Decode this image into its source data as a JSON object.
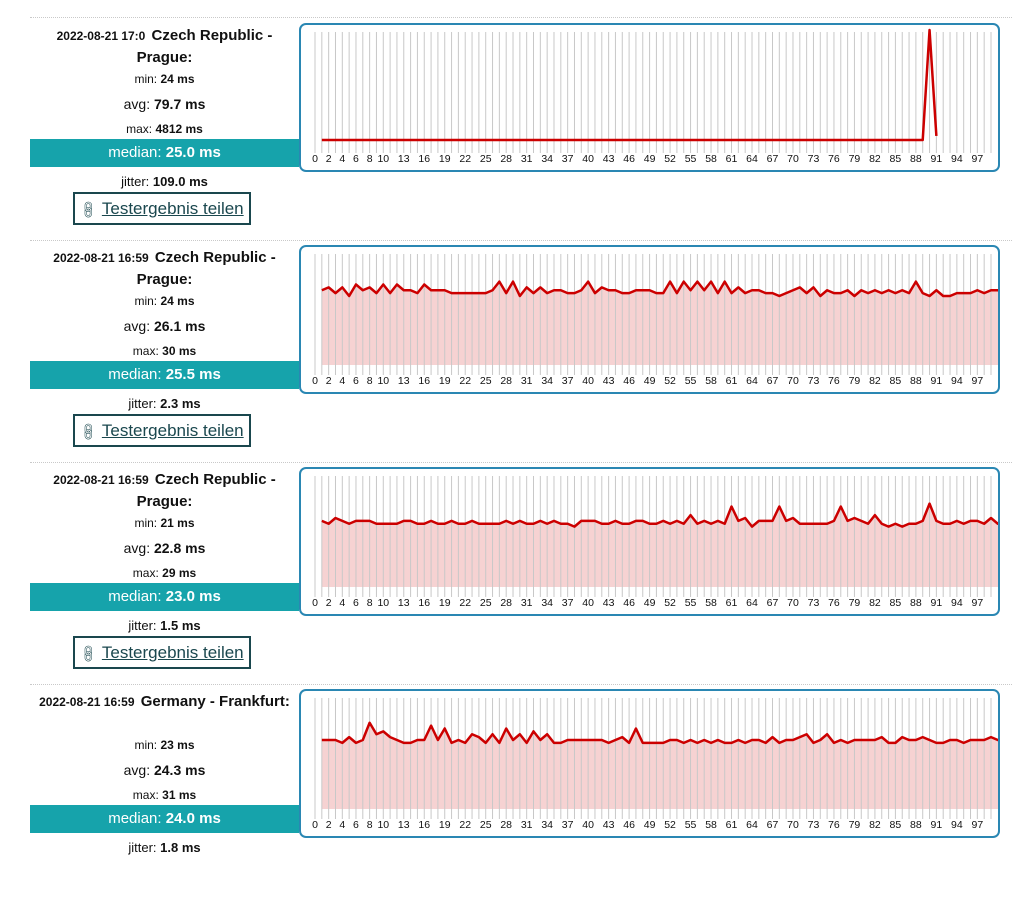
{
  "labels": {
    "min": "min:",
    "avg": "avg:",
    "max": "max:",
    "median": "median:",
    "jitter": "jitter:",
    "share": "Testergebnis teilen"
  },
  "results": [
    {
      "timestamp": "2022-08-21 17:0",
      "location": "Czech Republic - Prague:",
      "min": "24 ms",
      "avg": "79.7 ms",
      "max": "4812 ms",
      "median": "25.0 ms",
      "jitter": "109.0 ms"
    },
    {
      "timestamp": "2022-08-21 16:59",
      "location": "Czech Republic - Prague:",
      "min": "24 ms",
      "avg": "26.1 ms",
      "max": "30 ms",
      "median": "25.5 ms",
      "jitter": "2.3 ms"
    },
    {
      "timestamp": "2022-08-21 16:59",
      "location": "Czech Republic - Prague:",
      "min": "21 ms",
      "avg": "22.8 ms",
      "max": "29 ms",
      "median": "23.0 ms",
      "jitter": "1.5 ms"
    },
    {
      "timestamp": "2022-08-21 16:59",
      "location": "Germany - Frankfurt:",
      "min": "23 ms",
      "avg": "24.3 ms",
      "max": "31 ms",
      "median": "24.0 ms",
      "jitter": "1.8 ms"
    }
  ],
  "chart_data": [
    {
      "type": "line",
      "x_ticks": [
        "0",
        "2",
        "4",
        "6",
        "8",
        "10",
        "13",
        "16",
        "19",
        "22",
        "25",
        "28",
        "31",
        "34",
        "37",
        "40",
        "43",
        "46",
        "49",
        "52",
        "55",
        "58",
        "61",
        "64",
        "67",
        "70",
        "73",
        "76",
        "79",
        "82",
        "85",
        "88",
        "91",
        "94",
        "97"
      ],
      "x_count": 100,
      "fill": false,
      "colors": {
        "line": "#cc0000",
        "fill": "#f6d2d2",
        "grid": "#c8c8c8"
      },
      "y_range": [
        24,
        4812
      ],
      "series": [
        {
          "x_start": 1,
          "values": [
            24,
            24,
            24,
            24,
            24,
            24,
            24,
            24,
            24,
            24,
            24,
            24,
            24,
            24,
            24,
            24,
            24,
            24,
            24,
            24,
            24,
            24,
            24,
            24,
            24,
            24,
            24,
            24,
            24,
            24,
            24,
            24,
            24,
            24,
            24,
            24,
            24,
            24,
            24,
            24,
            24,
            24,
            24,
            24,
            24,
            24,
            24,
            24,
            24,
            24,
            24,
            24,
            24,
            24,
            24,
            24,
            24,
            24,
            24,
            24,
            24,
            24,
            24,
            24,
            24,
            24,
            24,
            24,
            24,
            24,
            24,
            24,
            24,
            24,
            24,
            24,
            24,
            24,
            24,
            24,
            24,
            24,
            24,
            24,
            24,
            24,
            24,
            24,
            24,
            4812,
            200
          ]
        }
      ]
    },
    {
      "type": "line",
      "x_ticks": [
        "0",
        "2",
        "4",
        "6",
        "8",
        "10",
        "13",
        "16",
        "19",
        "22",
        "25",
        "28",
        "31",
        "34",
        "37",
        "40",
        "43",
        "46",
        "49",
        "52",
        "55",
        "58",
        "61",
        "64",
        "67",
        "70",
        "73",
        "76",
        "79",
        "82",
        "85",
        "88",
        "91",
        "94",
        "97"
      ],
      "x_count": 100,
      "fill": true,
      "colors": {
        "line": "#cc0000",
        "fill": "#f6d2d2",
        "grid": "#c8c8c8"
      },
      "y_range": [
        0,
        32
      ],
      "series": [
        {
          "x_start": 1,
          "values": [
            26,
            27,
            25,
            27,
            24,
            28,
            26,
            27,
            25,
            28,
            25,
            28,
            26,
            26,
            25,
            28,
            26,
            26,
            26,
            25,
            25,
            25,
            25,
            25,
            25,
            26,
            29,
            25,
            29,
            24,
            27,
            25,
            27,
            25,
            26,
            26,
            25,
            25,
            26,
            29,
            25,
            27,
            26,
            26,
            25,
            25,
            26,
            26,
            26,
            25,
            25,
            29,
            25,
            29,
            26,
            29,
            26,
            29,
            25,
            29,
            25,
            27,
            25,
            26,
            26,
            25,
            25,
            24,
            25,
            26,
            27,
            25,
            27,
            24,
            26,
            25,
            25,
            26,
            24,
            26,
            25,
            26,
            25,
            26,
            25,
            26,
            25,
            29,
            25,
            24,
            26,
            24,
            24,
            25,
            25,
            25,
            26,
            25,
            26,
            26,
            25,
            25,
            26,
            26,
            25,
            25,
            25,
            25,
            26
          ]
        }
      ]
    },
    {
      "type": "line",
      "x_ticks": [
        "0",
        "2",
        "4",
        "6",
        "8",
        "10",
        "13",
        "16",
        "19",
        "22",
        "25",
        "28",
        "31",
        "34",
        "37",
        "40",
        "43",
        "46",
        "49",
        "52",
        "55",
        "58",
        "61",
        "64",
        "67",
        "70",
        "73",
        "76",
        "79",
        "82",
        "85",
        "88",
        "91",
        "94",
        "97"
      ],
      "x_count": 100,
      "fill": true,
      "colors": {
        "line": "#cc0000",
        "fill": "#f6d2d2",
        "grid": "#c8c8c8"
      },
      "y_range": [
        0,
        32
      ],
      "series": [
        {
          "x_start": 1,
          "values": [
            23,
            22,
            24,
            23,
            22,
            23,
            23,
            23,
            22,
            22,
            22,
            22,
            23,
            23,
            22,
            22,
            23,
            22,
            22,
            23,
            22,
            22,
            23,
            22,
            22,
            22,
            22,
            23,
            22,
            23,
            22,
            22,
            23,
            22,
            23,
            22,
            22,
            21,
            23,
            23,
            23,
            22,
            22,
            23,
            22,
            22,
            23,
            23,
            22,
            22,
            23,
            22,
            23,
            22,
            25,
            22,
            23,
            22,
            23,
            22,
            28,
            23,
            24,
            21,
            23,
            23,
            23,
            28,
            23,
            24,
            22,
            22,
            22,
            22,
            22,
            23,
            28,
            23,
            24,
            23,
            22,
            25,
            22,
            21,
            22,
            21,
            22,
            22,
            23,
            29,
            23,
            22,
            22,
            23,
            22,
            23,
            23,
            22,
            24,
            22,
            24,
            23,
            22
          ]
        }
      ]
    }
  ]
}
